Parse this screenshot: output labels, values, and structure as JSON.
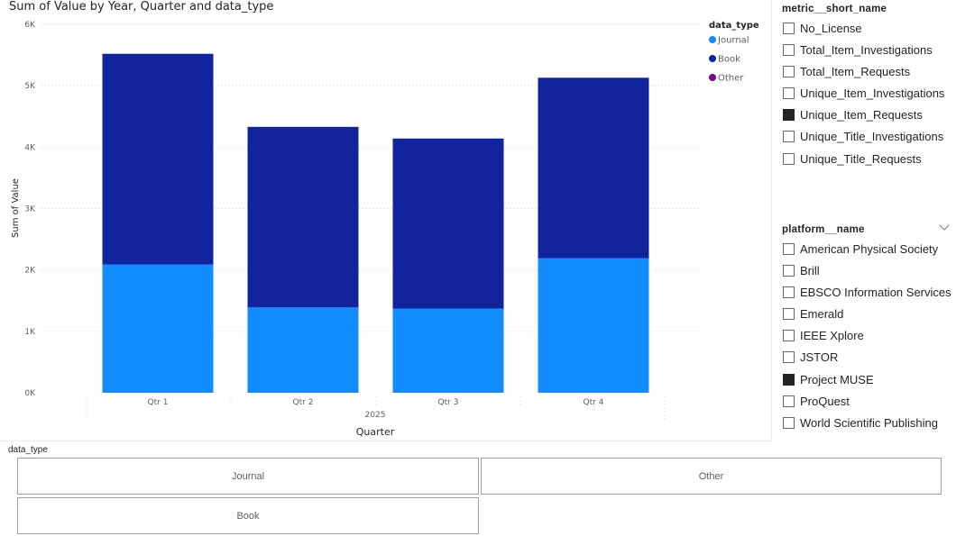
{
  "chart_data": {
    "type": "bar",
    "stacked": true,
    "title": "Sum of Value by Year, Quarter and data_type",
    "xlabel": "Quarter",
    "x_group_label": "2025",
    "ylabel": "Sum of Value",
    "ylim": [
      0,
      6000
    ],
    "yticks": [
      {
        "value": 0,
        "label": "0K"
      },
      {
        "value": 1000,
        "label": "1K"
      },
      {
        "value": 2000,
        "label": "2K"
      },
      {
        "value": 3000,
        "label": "3K"
      },
      {
        "value": 4000,
        "label": "4K"
      },
      {
        "value": 5000,
        "label": "5K"
      },
      {
        "value": 6000,
        "label": "6K"
      }
    ],
    "categories": [
      "Qtr 1",
      "Qtr 2",
      "Qtr 3",
      "Qtr 4"
    ],
    "series": [
      {
        "name": "Journal",
        "color": "#118dff",
        "values": [
          2090,
          1390,
          1370,
          2190
        ]
      },
      {
        "name": "Book",
        "color": "#12239e",
        "values": [
          3430,
          2940,
          2770,
          2940
        ]
      },
      {
        "name": "Other",
        "color": "#750985",
        "values": [
          0,
          0,
          0,
          0
        ]
      }
    ],
    "legend": {
      "title": "data_type",
      "placement": "top-right"
    },
    "grid": true
  },
  "metric_slicer": {
    "header": "metric__short_name",
    "items": [
      {
        "label": "No_License",
        "checked": false
      },
      {
        "label": "Total_Item_Investigations",
        "checked": false
      },
      {
        "label": "Total_Item_Requests",
        "checked": false
      },
      {
        "label": "Unique_Item_Investigations",
        "checked": false
      },
      {
        "label": "Unique_Item_Requests",
        "checked": true
      },
      {
        "label": "Unique_Title_Investigations",
        "checked": false
      },
      {
        "label": "Unique_Title_Requests",
        "checked": false
      }
    ]
  },
  "platform_slicer": {
    "header": "platform__name",
    "items": [
      {
        "label": "American Physical Society",
        "checked": false
      },
      {
        "label": "Brill",
        "checked": false
      },
      {
        "label": "EBSCO Information Services",
        "checked": false
      },
      {
        "label": "Emerald",
        "checked": false
      },
      {
        "label": "IEEE Xplore",
        "checked": false
      },
      {
        "label": "JSTOR",
        "checked": false
      },
      {
        "label": "Project MUSE",
        "checked": true
      },
      {
        "label": "ProQuest",
        "checked": false
      },
      {
        "label": "World Scientific Publishing",
        "checked": false
      }
    ]
  },
  "type_slicer": {
    "header": "data_type",
    "tiles": [
      {
        "label": "Journal"
      },
      {
        "label": "Other"
      },
      {
        "label": "Book"
      }
    ]
  }
}
